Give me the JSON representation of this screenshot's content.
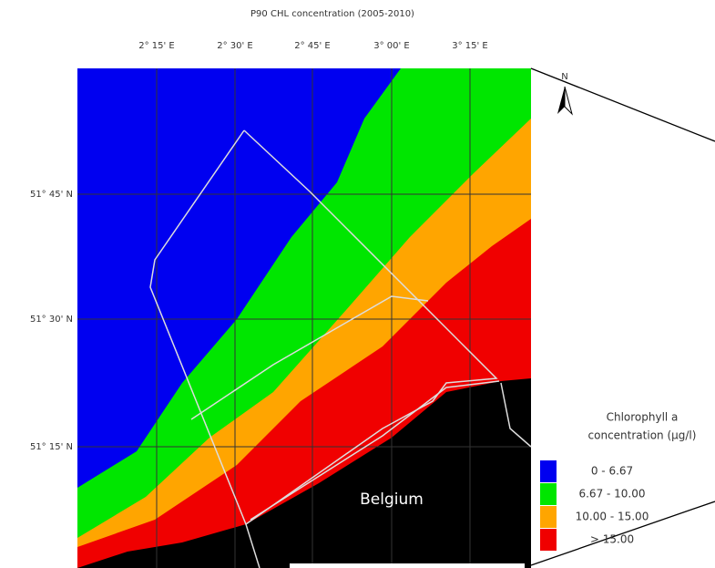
{
  "title": "P90 CHL concentration (2005-2010)",
  "longitude_labels": [
    "2° 15' E",
    "2° 30' E",
    "2° 45' E",
    "3° 00' E",
    "3° 15' E"
  ],
  "latitude_labels": [
    "51° 45' N",
    "51° 30' N",
    "51° 15' N"
  ],
  "north_label": "N",
  "country_label": "Belgium",
  "legend": {
    "title_lines": [
      "Chlorophyll a",
      "concentration (µg/l)"
    ],
    "items": [
      {
        "label": "0 - 6.67",
        "color": "#0000f0"
      },
      {
        "label": "6.67 - 10.00",
        "color": "#00e600"
      },
      {
        "label": "10.00 - 15.00",
        "color": "#ffa500"
      },
      {
        "label": "> 15.00",
        "color": "#f00000"
      }
    ]
  }
}
